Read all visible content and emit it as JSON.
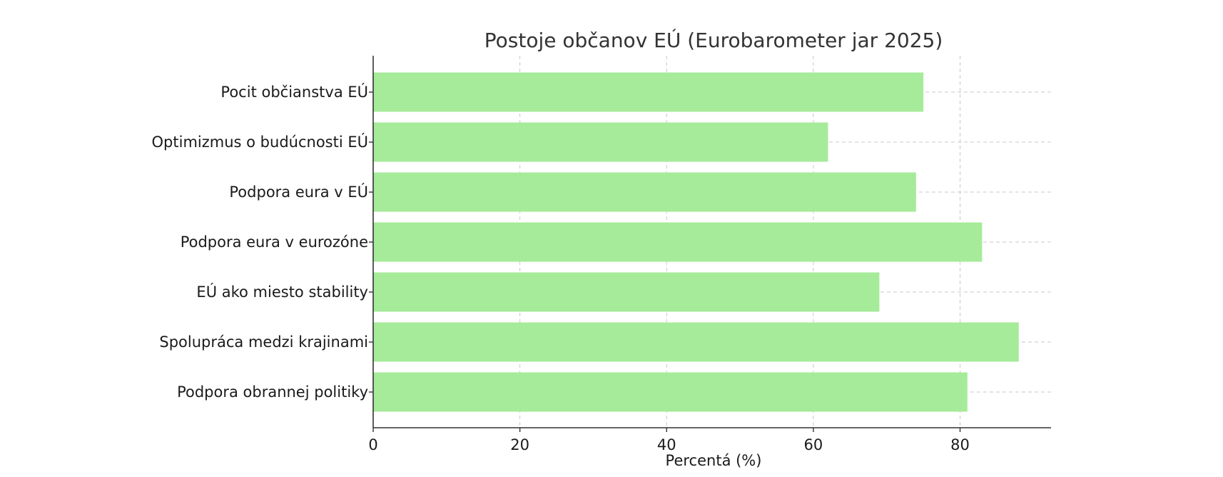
{
  "chart_data": {
    "type": "bar",
    "orientation": "horizontal",
    "title": "Postoje občanov EÚ (Eurobarometer jar 2025)",
    "xlabel": "Percentá (%)",
    "ylabel": "",
    "categories": [
      "Pocit občianstva EÚ",
      "Optimizmus o budúcnosti EÚ",
      "Podpora eura v EÚ",
      "Podpora eura v eurozóne",
      "EÚ ako miesto stability",
      "Spolupráca medzi krajinami",
      "Podpora obrannej politiky"
    ],
    "values": [
      75,
      62,
      74,
      83,
      69,
      88,
      81
    ],
    "xlim": [
      0,
      92.4
    ],
    "xticks": [
      0,
      20,
      40,
      60,
      80
    ],
    "grid": true,
    "bar_color": "#a6eb99",
    "axis_color": "#333333",
    "grid_color": "#c8c8c8"
  }
}
